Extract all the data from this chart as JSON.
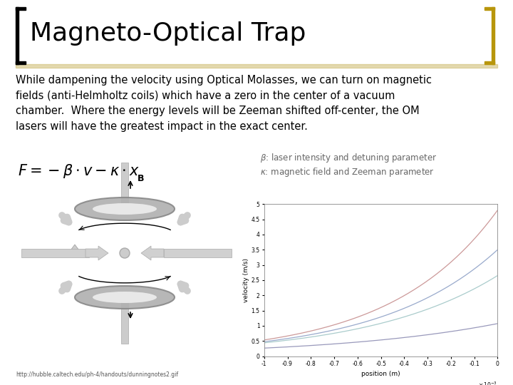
{
  "title": "Magneto-Optical Trap",
  "title_fontsize": 26,
  "title_color": "#000000",
  "bg_color": "#ffffff",
  "bracket_color_left": "#000000",
  "bracket_color_right": "#b8960c",
  "header_line_color": "#c8b460",
  "body_text": "While dampening the velocity using Optical Molasses, we can turn on magnetic\nfields (anti-Helmholtz coils) which have a zero in the center of a vacuum\nchamber.  Where the energy levels will be Zeeman shifted off-center, the OM\nlasers will have the greatest impact in the exact center.",
  "body_fontsize": 10.5,
  "formula_text": "$F = -\\beta \\cdot v - \\kappa \\cdot x$",
  "formula_fontsize": 15,
  "param_text1": "$\\beta$: laser intensity and detuning parameter",
  "param_text2": "$\\kappa$: magnetic field and Zeeman parameter",
  "param_fontsize": 8.5,
  "plot_xlabel": "position (m)",
  "plot_ylabel": "velocity (m/s)",
  "curve_colors": [
    "#cc9999",
    "#99aacc",
    "#aacccc",
    "#9999bb"
  ],
  "url_text": "http://hubble.caltech.edu/ph-4/handouts/dunningnotes2.gif",
  "url_fontsize": 5.5
}
